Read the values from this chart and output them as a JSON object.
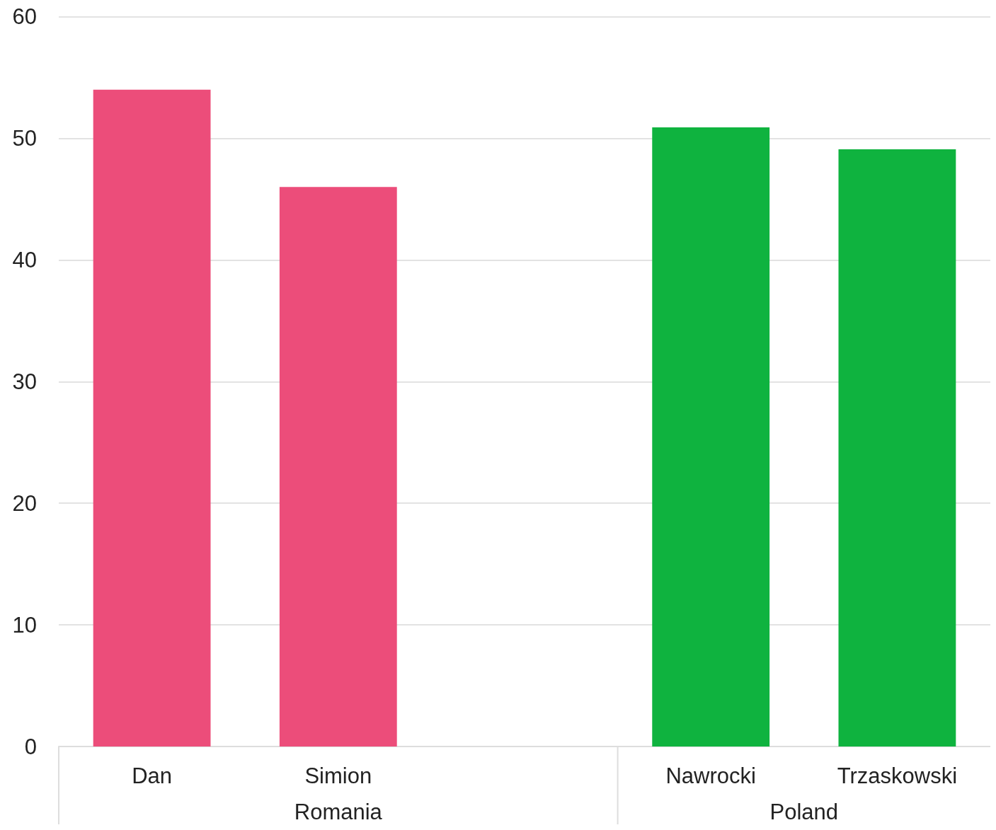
{
  "chart_data": {
    "type": "bar",
    "categories": [
      "Dan",
      "Simion",
      null,
      "Nawrocki",
      "Trzaskowski"
    ],
    "series": [
      {
        "name": "Romania",
        "color": "#ec4d7a",
        "values": [
          54,
          46,
          null,
          null,
          null
        ]
      },
      {
        "name": "Poland",
        "color": "#0fb33f",
        "values": [
          null,
          null,
          null,
          50.9,
          49.1
        ]
      }
    ],
    "ylim": [
      0,
      60
    ],
    "yticks": [
      0,
      10,
      20,
      30,
      40,
      50,
      60
    ],
    "grid": "y",
    "legend": false
  }
}
